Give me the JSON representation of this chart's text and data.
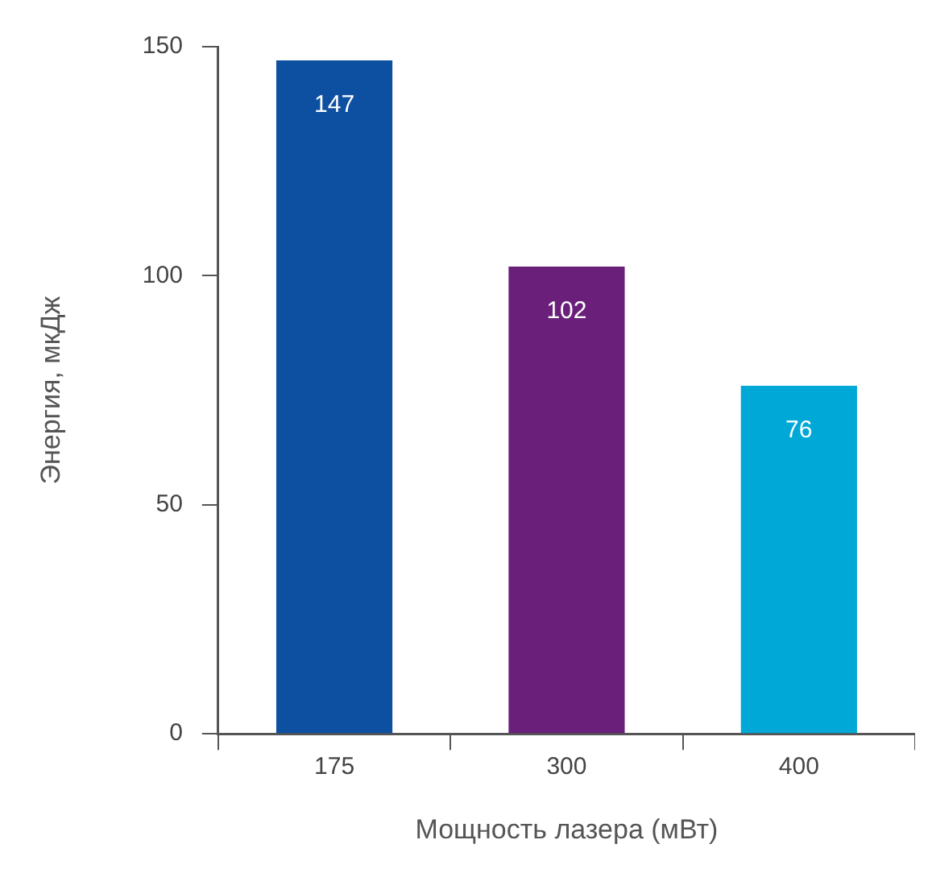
{
  "chart_data": {
    "type": "bar",
    "xlabel": "Мощность лазера (мВт)",
    "ylabel": "Энергия, мкДж",
    "categories": [
      "175",
      "300",
      "400"
    ],
    "values": [
      147,
      102,
      76
    ],
    "colors": [
      "#0d4fa0",
      "#6a1f7a",
      "#00a8d8"
    ],
    "ylim": [
      0,
      150
    ],
    "yticks": [
      0,
      50,
      100,
      150
    ],
    "grid": false,
    "legend": false,
    "data_labels": true
  }
}
